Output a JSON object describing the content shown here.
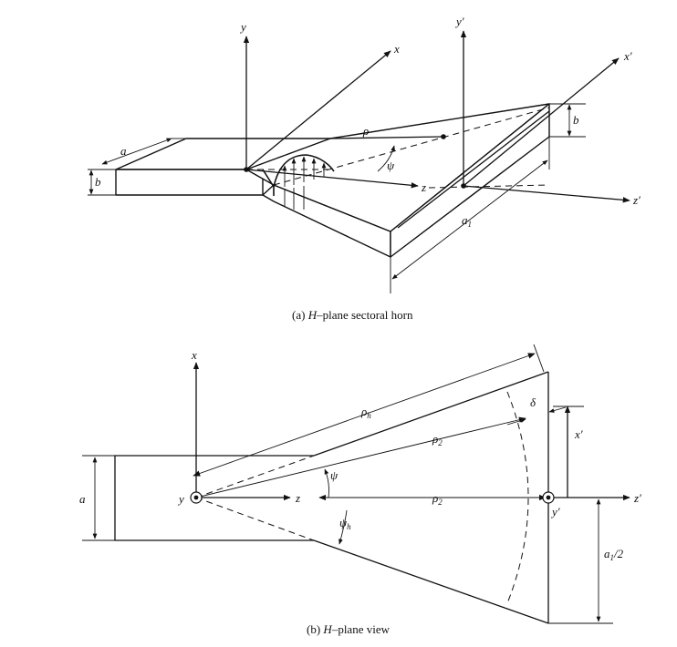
{
  "labels_a": {
    "y": "y",
    "x": "x",
    "y_prime": "y′",
    "x_prime": "x′",
    "z": "z",
    "z_prime": "z′",
    "a": "a",
    "b_left": "b",
    "b_right": "b",
    "rho": "ρ",
    "psi": "ψ",
    "a1": "a",
    "a1_sub": "1"
  },
  "labels_b": {
    "x": "x",
    "y": "y",
    "z": "z",
    "a": "a",
    "rho_h": "ρ",
    "rho_h_sub": "h",
    "rho2_upper": "ρ",
    "rho2_upper_sub": "2",
    "rho2_axis": "ρ",
    "rho2_axis_sub": "2",
    "delta": "δ",
    "psi": "ψ",
    "psi_h": "ψ",
    "psi_h_sub": "h",
    "x_prime": "x′",
    "y_prime": "y′",
    "z_prime": "z′",
    "a1_half": "a",
    "a1_half_sub": "1",
    "a1_half_tail": "/2"
  },
  "captions": {
    "a_prefix": "(a)",
    "a_italic": "H",
    "a_text": "–plane sectoral horn",
    "b_prefix": "(b)",
    "b_italic": "H",
    "b_text": "–plane view"
  }
}
